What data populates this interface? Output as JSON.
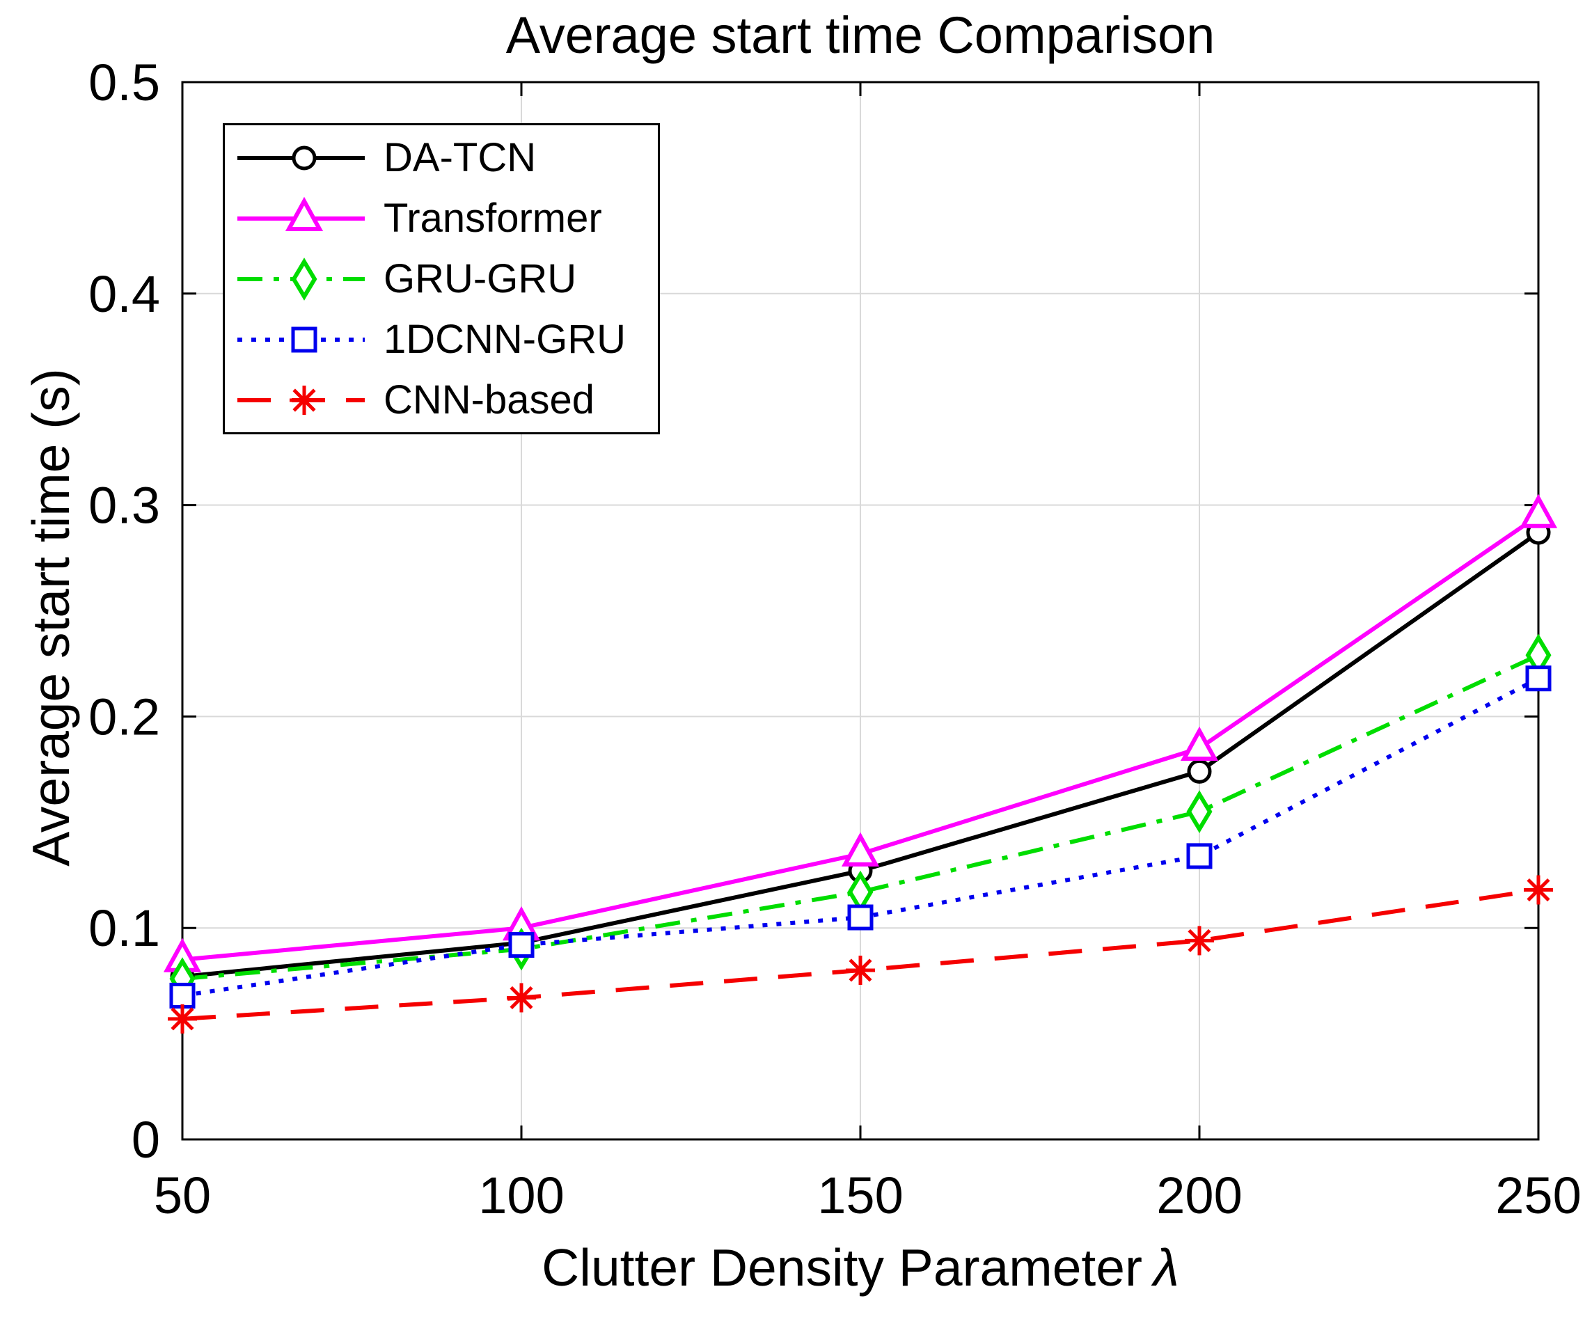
{
  "chart_data": {
    "type": "line",
    "title": "Average start time Comparison",
    "xlabel": "Clutter Density Parameter λ",
    "xlabel_prefix": "Clutter Density Parameter",
    "xlabel_symbol": "λ",
    "ylabel": "Average start time (s)",
    "x": [
      50,
      100,
      150,
      200,
      250
    ],
    "xlim": [
      50,
      250
    ],
    "ylim": [
      0,
      0.5
    ],
    "xticks": [
      50,
      100,
      150,
      200,
      250
    ],
    "xtick_labels": [
      "50",
      "100",
      "150",
      "200",
      "250"
    ],
    "yticks": [
      0,
      0.1,
      0.2,
      0.3,
      0.4,
      0.5
    ],
    "ytick_labels": [
      "0",
      "0.1",
      "0.2",
      "0.3",
      "0.4",
      "0.5"
    ],
    "grid": true,
    "grid_color": "#d9d9d9",
    "axis_color": "#000000",
    "background_color": "#ffffff",
    "legend_position": "top-left",
    "series": [
      {
        "name": "DA-TCN",
        "color": "#000000",
        "line_style": "solid",
        "marker": "circle",
        "values": [
          0.077,
          0.093,
          0.127,
          0.174,
          0.287
        ]
      },
      {
        "name": "Transformer",
        "color": "#ff00ff",
        "line_style": "solid",
        "marker": "triangle",
        "values": [
          0.085,
          0.1,
          0.135,
          0.185,
          0.295
        ]
      },
      {
        "name": "GRU-GRU",
        "color": "#00dd00",
        "line_style": "dash-dot",
        "marker": "diamond",
        "values": [
          0.076,
          0.09,
          0.117,
          0.155,
          0.229
        ]
      },
      {
        "name": "1DCNN-GRU",
        "color": "#0000ee",
        "line_style": "dotted",
        "marker": "square",
        "values": [
          0.068,
          0.092,
          0.105,
          0.134,
          0.218
        ]
      },
      {
        "name": "CNN-based",
        "color": "#f50000",
        "line_style": "dashed",
        "marker": "asterisk",
        "values": [
          0.057,
          0.067,
          0.08,
          0.094,
          0.118
        ]
      }
    ]
  }
}
